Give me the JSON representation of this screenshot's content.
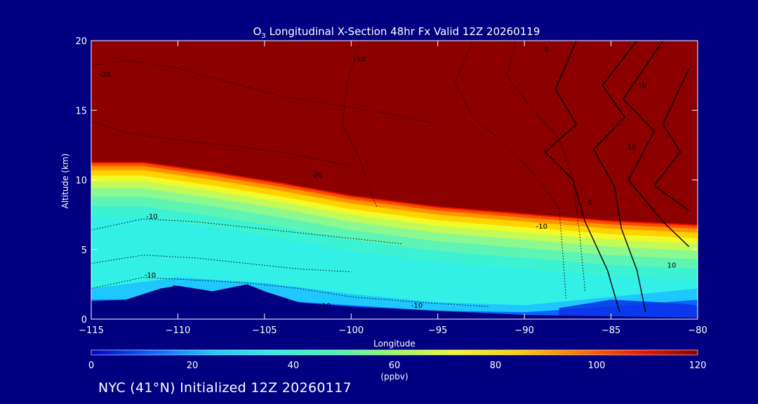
{
  "chart_data": {
    "type": "heatmap",
    "title_prefix": "O",
    "title_sub": "3",
    "title_rest": " Longitudinal X-Section 48hr  Fx Valid 12Z 20260119",
    "xlabel": "Longitude",
    "ylabel": "Altitude (km)",
    "xlim": [
      -115,
      -80
    ],
    "ylim": [
      0,
      20
    ],
    "x_ticks": [
      -115,
      -110,
      -105,
      -100,
      -95,
      -90,
      -85,
      -80
    ],
    "x_tick_labels": [
      "−115",
      "−110",
      "−105",
      "−100",
      "−95",
      "−90",
      "−85",
      "−80"
    ],
    "y_ticks": [
      0,
      5,
      10,
      15,
      20
    ],
    "y_tick_labels": [
      "0",
      "5",
      "10",
      "15",
      "20"
    ],
    "colorbar": {
      "min": 0,
      "max": 120,
      "ticks": [
        0,
        20,
        40,
        60,
        80,
        100,
        120
      ],
      "tick_labels": [
        "0",
        "20",
        "40",
        "60",
        "80",
        "100",
        "120"
      ],
      "unit": "(ppbv)"
    },
    "colormap": [
      "#0000c8",
      "#0a64ff",
      "#1ec8ff",
      "#32f0e6",
      "#46f5b4",
      "#96fa64",
      "#f0fa28",
      "#ffd200",
      "#ff7800",
      "#f01e00",
      "#8c0000"
    ],
    "tropopause_height_km": [
      {
        "lon": -115,
        "alt": 11.3
      },
      {
        "lon": -112,
        "alt": 11.3
      },
      {
        "lon": -108,
        "alt": 10.6
      },
      {
        "lon": -104,
        "alt": 9.8
      },
      {
        "lon": -100,
        "alt": 8.9
      },
      {
        "lon": -95,
        "alt": 8.1
      },
      {
        "lon": -90,
        "alt": 7.6
      },
      {
        "lon": -85,
        "alt": 7.1
      },
      {
        "lon": -80,
        "alt": 6.8
      }
    ],
    "terrain_km": [
      {
        "lon": -115,
        "alt": 1.3
      },
      {
        "lon": -113,
        "alt": 1.4
      },
      {
        "lon": -111,
        "alt": 2.2
      },
      {
        "lon": -110,
        "alt": 2.4
      },
      {
        "lon": -108,
        "alt": 2.0
      },
      {
        "lon": -106,
        "alt": 2.5
      },
      {
        "lon": -105,
        "alt": 2.0
      },
      {
        "lon": -104,
        "alt": 1.6
      },
      {
        "lon": -103,
        "alt": 1.2
      },
      {
        "lon": -100,
        "alt": 0.9
      },
      {
        "lon": -95,
        "alt": 0.6
      },
      {
        "lon": -90,
        "alt": 0.3
      },
      {
        "lon": -85,
        "alt": 0.2
      },
      {
        "lon": -80,
        "alt": 0.1
      }
    ],
    "contour_labels": [
      "-20",
      "-10",
      "-10",
      "-20",
      "-10",
      "0",
      "-10",
      "-10",
      "-10",
      "0",
      "10",
      "10",
      "10",
      "0"
    ]
  },
  "footer": {
    "text": "NYC (41°N) Initialized 12Z 20260117"
  }
}
